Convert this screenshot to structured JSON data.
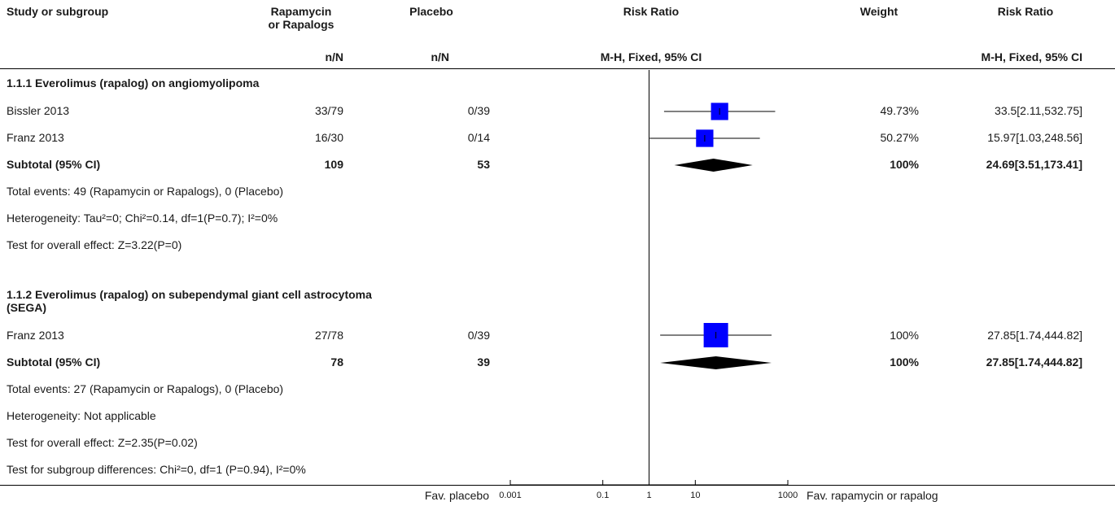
{
  "header": {
    "study_col": "Study or subgroup",
    "treat_col_line1": "Rapamycin",
    "treat_col_line2": "or Rapalogs",
    "placebo_col": "Placebo",
    "rr_col": "Risk Ratio",
    "weight_col": "Weight",
    "rr2_col": "Risk Ratio",
    "treat_sub": "n/N",
    "placebo_sub": "n/N",
    "rr_sub": "M-H, Fixed, 95% CI",
    "rr2_sub": "M-H, Fixed, 95% CI"
  },
  "groups": [
    {
      "title": "1.1.1 Everolimus (rapalog) on angiomyolipoma",
      "studies": [
        {
          "name": "Bissler 2013",
          "treat": "33/79",
          "placebo": "0/39",
          "weight": "49.73%",
          "ci_text": "33.5[2.11,532.75]"
        },
        {
          "name": "Franz 2013",
          "treat": "16/30",
          "placebo": "0/14",
          "weight": "50.27%",
          "ci_text": "15.97[1.03,248.56]"
        }
      ],
      "subtotal": {
        "label": "Subtotal (95% CI)",
        "treat": "109",
        "placebo": "53",
        "weight": "100%",
        "ci_text": "24.69[3.51,173.41]"
      },
      "notes": [
        "Total events: 49 (Rapamycin or Rapalogs), 0 (Placebo)",
        "Heterogeneity: Tau²=0; Chi²=0.14, df=1(P=0.7); I²=0%",
        "Test for overall effect: Z=3.22(P=0)"
      ]
    },
    {
      "title": "1.1.2 Everolimus (rapalog) on subependymal giant cell astrocytoma",
      "title_line2": "(SEGA)",
      "studies": [
        {
          "name": "Franz 2013",
          "treat": "27/78",
          "placebo": "0/39",
          "weight": "100%",
          "ci_text": "27.85[1.74,444.82]"
        }
      ],
      "subtotal": {
        "label": "Subtotal (95% CI)",
        "treat": "78",
        "placebo": "39",
        "weight": "100%",
        "ci_text": "27.85[1.74,444.82]"
      },
      "notes": [
        "Total events: 27 (Rapamycin or Rapalogs), 0 (Placebo)",
        "Heterogeneity: Not applicable",
        "Test for overall effect: Z=2.35(P=0.02)",
        "Test for subgroup differences: Chi²=0, df=1 (P=0.94), I²=0%"
      ]
    }
  ],
  "axis": {
    "left_label": "Fav. placebo",
    "right_label": "Fav. rapamycin or rapalog"
  },
  "colors": {
    "marker": "#0000ff",
    "diamond": "#000000"
  },
  "chart_data": {
    "type": "forest",
    "scale": "log",
    "xlim": [
      0.001,
      1000
    ],
    "null_line": 1,
    "ticks": [
      {
        "value": 0.001,
        "label": "0.001"
      },
      {
        "value": 0.1,
        "label": "0.1"
      },
      {
        "value": 1,
        "label": "1"
      },
      {
        "value": 10,
        "label": "10"
      },
      {
        "value": 1000,
        "label": "1000"
      }
    ],
    "studies": [
      {
        "name": "Bissler 2013",
        "rr": 33.5,
        "lo": 2.11,
        "hi": 532.75,
        "weight": 49.73
      },
      {
        "name": "Franz 2013",
        "rr": 15.97,
        "lo": 1.03,
        "hi": 248.56,
        "weight": 50.27
      },
      {
        "name": "Franz 2013",
        "rr": 27.85,
        "lo": 1.74,
        "hi": 444.82,
        "weight": 100
      }
    ],
    "subtotals": [
      {
        "label": "Subtotal (95% CI)",
        "rr": 24.69,
        "lo": 3.51,
        "hi": 173.41
      },
      {
        "label": "Subtotal (95% CI)",
        "rr": 27.85,
        "lo": 1.74,
        "hi": 444.82
      }
    ]
  }
}
